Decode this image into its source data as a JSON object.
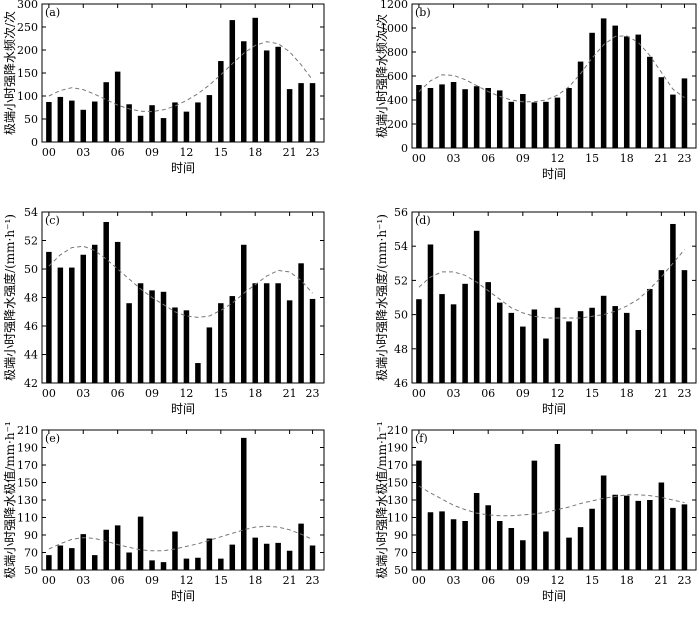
{
  "chart_data": [
    {
      "panel": "(a)",
      "type": "bar",
      "xlabel": "时间",
      "ylabel": "极端小时强降水频次/次",
      "ylim": [
        0,
        300
      ],
      "yticks": [
        0,
        50,
        100,
        150,
        200,
        250,
        300
      ],
      "xticks": [
        "00",
        "03",
        "06",
        "09",
        "12",
        "15",
        "18",
        "21",
        "23"
      ],
      "categories": [
        "00",
        "01",
        "02",
        "03",
        "04",
        "05",
        "06",
        "07",
        "08",
        "09",
        "10",
        "11",
        "12",
        "13",
        "14",
        "15",
        "16",
        "17",
        "18",
        "19",
        "20",
        "21",
        "22",
        "23"
      ],
      "values": [
        87,
        98,
        90,
        70,
        88,
        130,
        153,
        82,
        57,
        80,
        52,
        86,
        66,
        86,
        102,
        176,
        265,
        219,
        270,
        199,
        207,
        115,
        128,
        128
      ],
      "trend": [
        100,
        112,
        118,
        114,
        104,
        92,
        80,
        72,
        67,
        66,
        70,
        78,
        90,
        105,
        124,
        146,
        170,
        193,
        210,
        218,
        214,
        196,
        168,
        135
      ]
    },
    {
      "panel": "(b)",
      "type": "bar",
      "xlabel": "时间",
      "ylabel": "极端小时强降水频次/次",
      "ylim": [
        0,
        1200
      ],
      "yticks": [
        0,
        200,
        400,
        600,
        800,
        1000,
        1200
      ],
      "xticks": [
        "00",
        "03",
        "06",
        "09",
        "12",
        "15",
        "18",
        "21",
        "23"
      ],
      "categories": [
        "00",
        "01",
        "02",
        "03",
        "04",
        "05",
        "06",
        "07",
        "08",
        "09",
        "10",
        "11",
        "12",
        "13",
        "14",
        "15",
        "16",
        "17",
        "18",
        "19",
        "20",
        "21",
        "22",
        "23"
      ],
      "values": [
        525,
        500,
        530,
        550,
        490,
        515,
        500,
        480,
        385,
        450,
        380,
        385,
        420,
        500,
        720,
        960,
        1080,
        1020,
        930,
        945,
        760,
        590,
        445,
        580
      ],
      "trend": [
        470,
        560,
        610,
        605,
        570,
        520,
        470,
        430,
        400,
        385,
        385,
        400,
        440,
        510,
        620,
        750,
        860,
        930,
        935,
        880,
        770,
        630,
        490,
        420
      ]
    },
    {
      "panel": "(c)",
      "type": "bar",
      "xlabel": "时间",
      "ylabel": "极端小时强降水强度/(mm·h⁻¹)",
      "ylim": [
        42,
        54
      ],
      "yticks": [
        42,
        44,
        46,
        48,
        50,
        52,
        54
      ],
      "xticks": [
        "00",
        "03",
        "06",
        "09",
        "12",
        "15",
        "18",
        "21",
        "23"
      ],
      "categories": [
        "00",
        "01",
        "02",
        "03",
        "04",
        "05",
        "06",
        "07",
        "08",
        "09",
        "10",
        "11",
        "12",
        "13",
        "14",
        "15",
        "16",
        "17",
        "18",
        "19",
        "20",
        "21",
        "22",
        "23"
      ],
      "values": [
        51.2,
        50.1,
        50.1,
        51.0,
        51.7,
        53.3,
        51.9,
        47.6,
        49.0,
        48.5,
        48.4,
        47.3,
        47.1,
        43.4,
        45.9,
        47.6,
        48.1,
        51.7,
        49.0,
        49.0,
        49.0,
        47.8,
        50.4,
        47.9
      ],
      "trend": [
        50.2,
        51.0,
        51.5,
        51.6,
        51.3,
        50.7,
        50.0,
        49.3,
        48.6,
        48.0,
        47.5,
        47.0,
        46.7,
        46.6,
        46.7,
        47.1,
        47.6,
        48.3,
        48.9,
        49.5,
        49.9,
        49.8,
        49.2,
        48.3
      ]
    },
    {
      "panel": "(d)",
      "type": "bar",
      "xlabel": "时间",
      "ylabel": "极端小时强降水强度/(mm·h⁻¹)",
      "ylim": [
        46,
        56
      ],
      "yticks": [
        46,
        48,
        50,
        52,
        54,
        56
      ],
      "xticks": [
        "00",
        "03",
        "06",
        "09",
        "12",
        "15",
        "18",
        "21",
        "23"
      ],
      "categories": [
        "00",
        "01",
        "02",
        "03",
        "04",
        "05",
        "06",
        "07",
        "08",
        "09",
        "10",
        "11",
        "12",
        "13",
        "14",
        "15",
        "16",
        "17",
        "18",
        "19",
        "20",
        "21",
        "22",
        "23"
      ],
      "values": [
        50.9,
        54.1,
        51.2,
        50.6,
        51.8,
        54.9,
        51.9,
        50.7,
        50.1,
        49.3,
        50.3,
        48.6,
        50.4,
        49.6,
        50.2,
        50.4,
        51.1,
        50.5,
        50.1,
        49.1,
        51.5,
        52.6,
        55.3,
        52.6
      ],
      "trend": [
        51.6,
        52.2,
        52.5,
        52.5,
        52.3,
        51.9,
        51.4,
        50.9,
        50.4,
        50.1,
        49.9,
        49.8,
        49.8,
        49.8,
        49.8,
        49.9,
        50.0,
        50.2,
        50.5,
        50.9,
        51.5,
        52.2,
        53.0,
        53.8
      ]
    },
    {
      "panel": "(e)",
      "type": "bar",
      "xlabel": "时间",
      "ylabel": "极端小时强降水极值/mm·h⁻¹",
      "ylim": [
        50,
        210
      ],
      "yticks": [
        50,
        70,
        90,
        110,
        130,
        150,
        170,
        190,
        210
      ],
      "xticks": [
        "00",
        "03",
        "06",
        "09",
        "12",
        "15",
        "18",
        "21",
        "23"
      ],
      "categories": [
        "00",
        "01",
        "02",
        "03",
        "04",
        "05",
        "06",
        "07",
        "08",
        "09",
        "10",
        "11",
        "12",
        "13",
        "14",
        "15",
        "16",
        "17",
        "18",
        "19",
        "20",
        "21",
        "22",
        "23"
      ],
      "values": [
        67,
        78,
        75,
        91,
        67,
        96,
        101,
        70,
        111,
        61,
        59,
        94,
        63,
        64,
        86,
        63,
        79,
        201,
        87,
        80,
        81,
        72,
        103,
        78
      ],
      "trend": [
        74,
        80,
        85,
        87,
        86,
        83,
        79,
        76,
        73,
        72,
        72,
        74,
        77,
        80,
        84,
        88,
        92,
        96,
        99,
        100,
        99,
        96,
        91,
        85
      ]
    },
    {
      "panel": "(f)",
      "type": "bar",
      "xlabel": "时间",
      "ylabel": "极端小时强降水极值/mm·h⁻¹",
      "ylim": [
        50,
        210
      ],
      "yticks": [
        50,
        70,
        90,
        110,
        130,
        150,
        170,
        190,
        210
      ],
      "xticks": [
        "00",
        "03",
        "06",
        "09",
        "12",
        "15",
        "18",
        "21",
        "23"
      ],
      "categories": [
        "00",
        "01",
        "02",
        "03",
        "04",
        "05",
        "06",
        "07",
        "08",
        "09",
        "10",
        "11",
        "12",
        "13",
        "14",
        "15",
        "16",
        "17",
        "18",
        "19",
        "20",
        "21",
        "22",
        "23"
      ],
      "values": [
        175,
        116,
        117,
        108,
        106,
        138,
        124,
        106,
        98,
        84,
        175,
        94,
        194,
        87,
        99,
        120,
        158,
        136,
        135,
        129,
        130,
        150,
        121,
        125
      ],
      "trend": [
        146,
        138,
        131,
        124,
        119,
        115,
        113,
        112,
        112,
        113,
        114,
        116,
        119,
        122,
        126,
        129,
        132,
        134,
        136,
        136,
        135,
        133,
        130,
        127
      ]
    }
  ]
}
